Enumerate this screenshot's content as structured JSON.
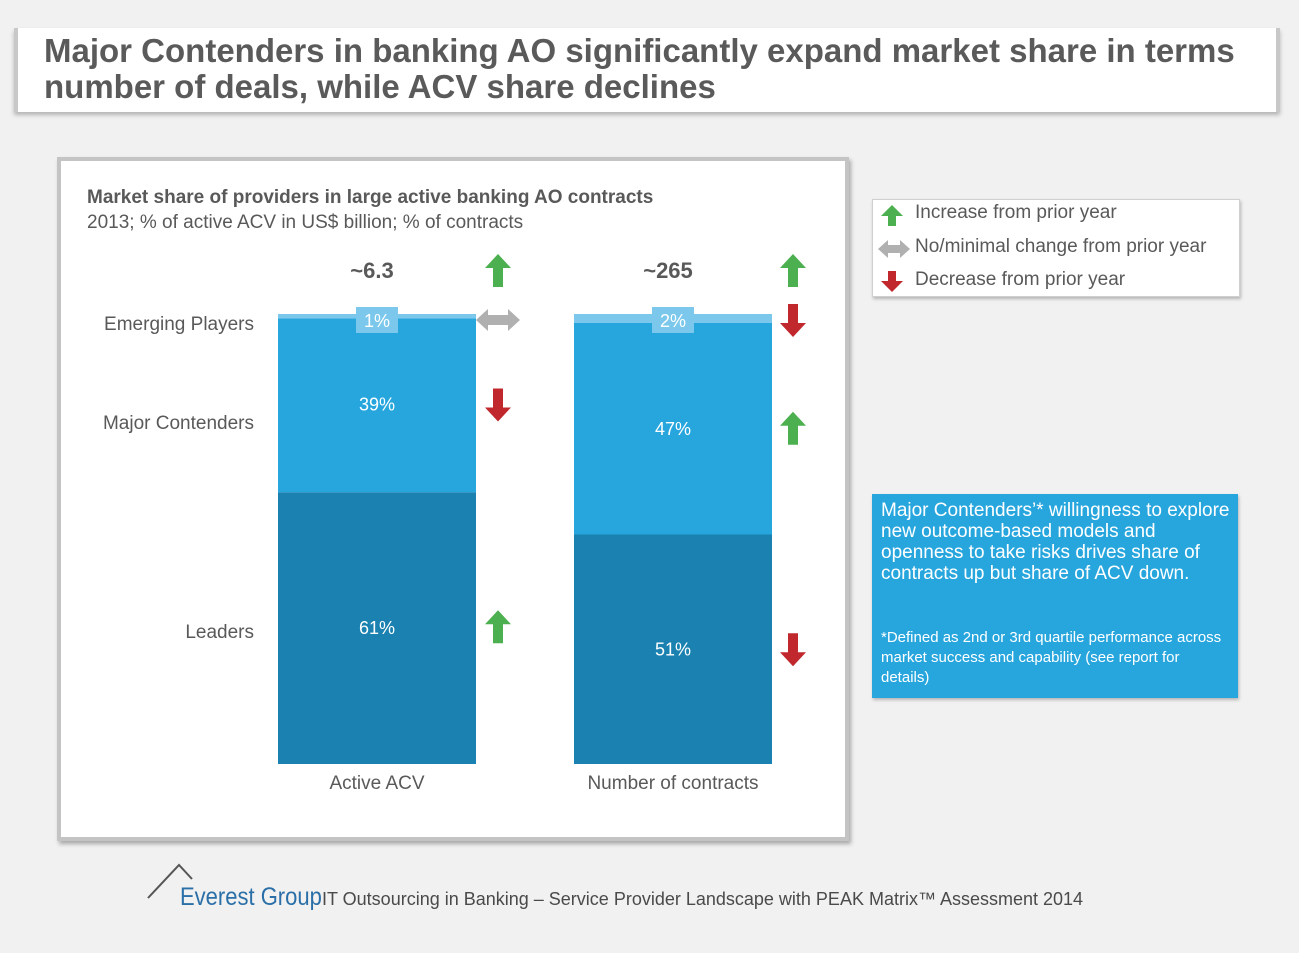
{
  "title": "Major Contenders in banking AO significantly expand market share in terms number of deals, while ACV share declines",
  "chart_data": {
    "type": "bar",
    "stacked": true,
    "title": "Market share of providers in large active banking AO contracts",
    "subtitle": "2013; % of active ACV in US$ billion; % of contracts",
    "categories": [
      "Active ACV",
      "Number of contracts"
    ],
    "totals": [
      "~6.3",
      "~265"
    ],
    "total_trends": [
      "increase",
      "increase"
    ],
    "series": [
      {
        "name": "Leaders",
        "values": [
          61,
          51
        ],
        "labels": [
          "61%",
          "51%"
        ],
        "color": "#1a81b0",
        "trends": [
          "increase",
          "decrease"
        ]
      },
      {
        "name": "Major Contenders",
        "values": [
          39,
          47
        ],
        "labels": [
          "39%",
          "47%"
        ],
        "color": "#27a6de",
        "trends": [
          "decrease",
          "increase"
        ]
      },
      {
        "name": "Emerging Players",
        "values": [
          1,
          2
        ],
        "labels": [
          "1%",
          "2%"
        ],
        "color": "#7cc8ec",
        "trends": [
          "no change",
          "decrease"
        ]
      }
    ],
    "ylim": [
      0,
      100
    ],
    "grid": false
  },
  "legend": {
    "items": [
      {
        "label": "Increase from prior year",
        "icon": "up-arrow-icon",
        "color": "#4caf50"
      },
      {
        "label": "No/minimal change from prior year",
        "icon": "double-arrow-icon",
        "color": "#b0b0b0"
      },
      {
        "label": "Decrease from prior year",
        "icon": "down-arrow-icon",
        "color": "#c0282d"
      }
    ]
  },
  "note": {
    "main": "Major Contenders’* willingness to explore new outcome-based models and openness to take risks drives share of contracts up but share of ACV down.",
    "footnote": "*Defined as 2nd or 3rd quartile performance across market success and capability (see report for details)"
  },
  "footer": {
    "brand": "Everest Group",
    "text": "IT Outsourcing in Banking – Service Provider Landscape with PEAK Matrix™ Assessment 2014"
  }
}
